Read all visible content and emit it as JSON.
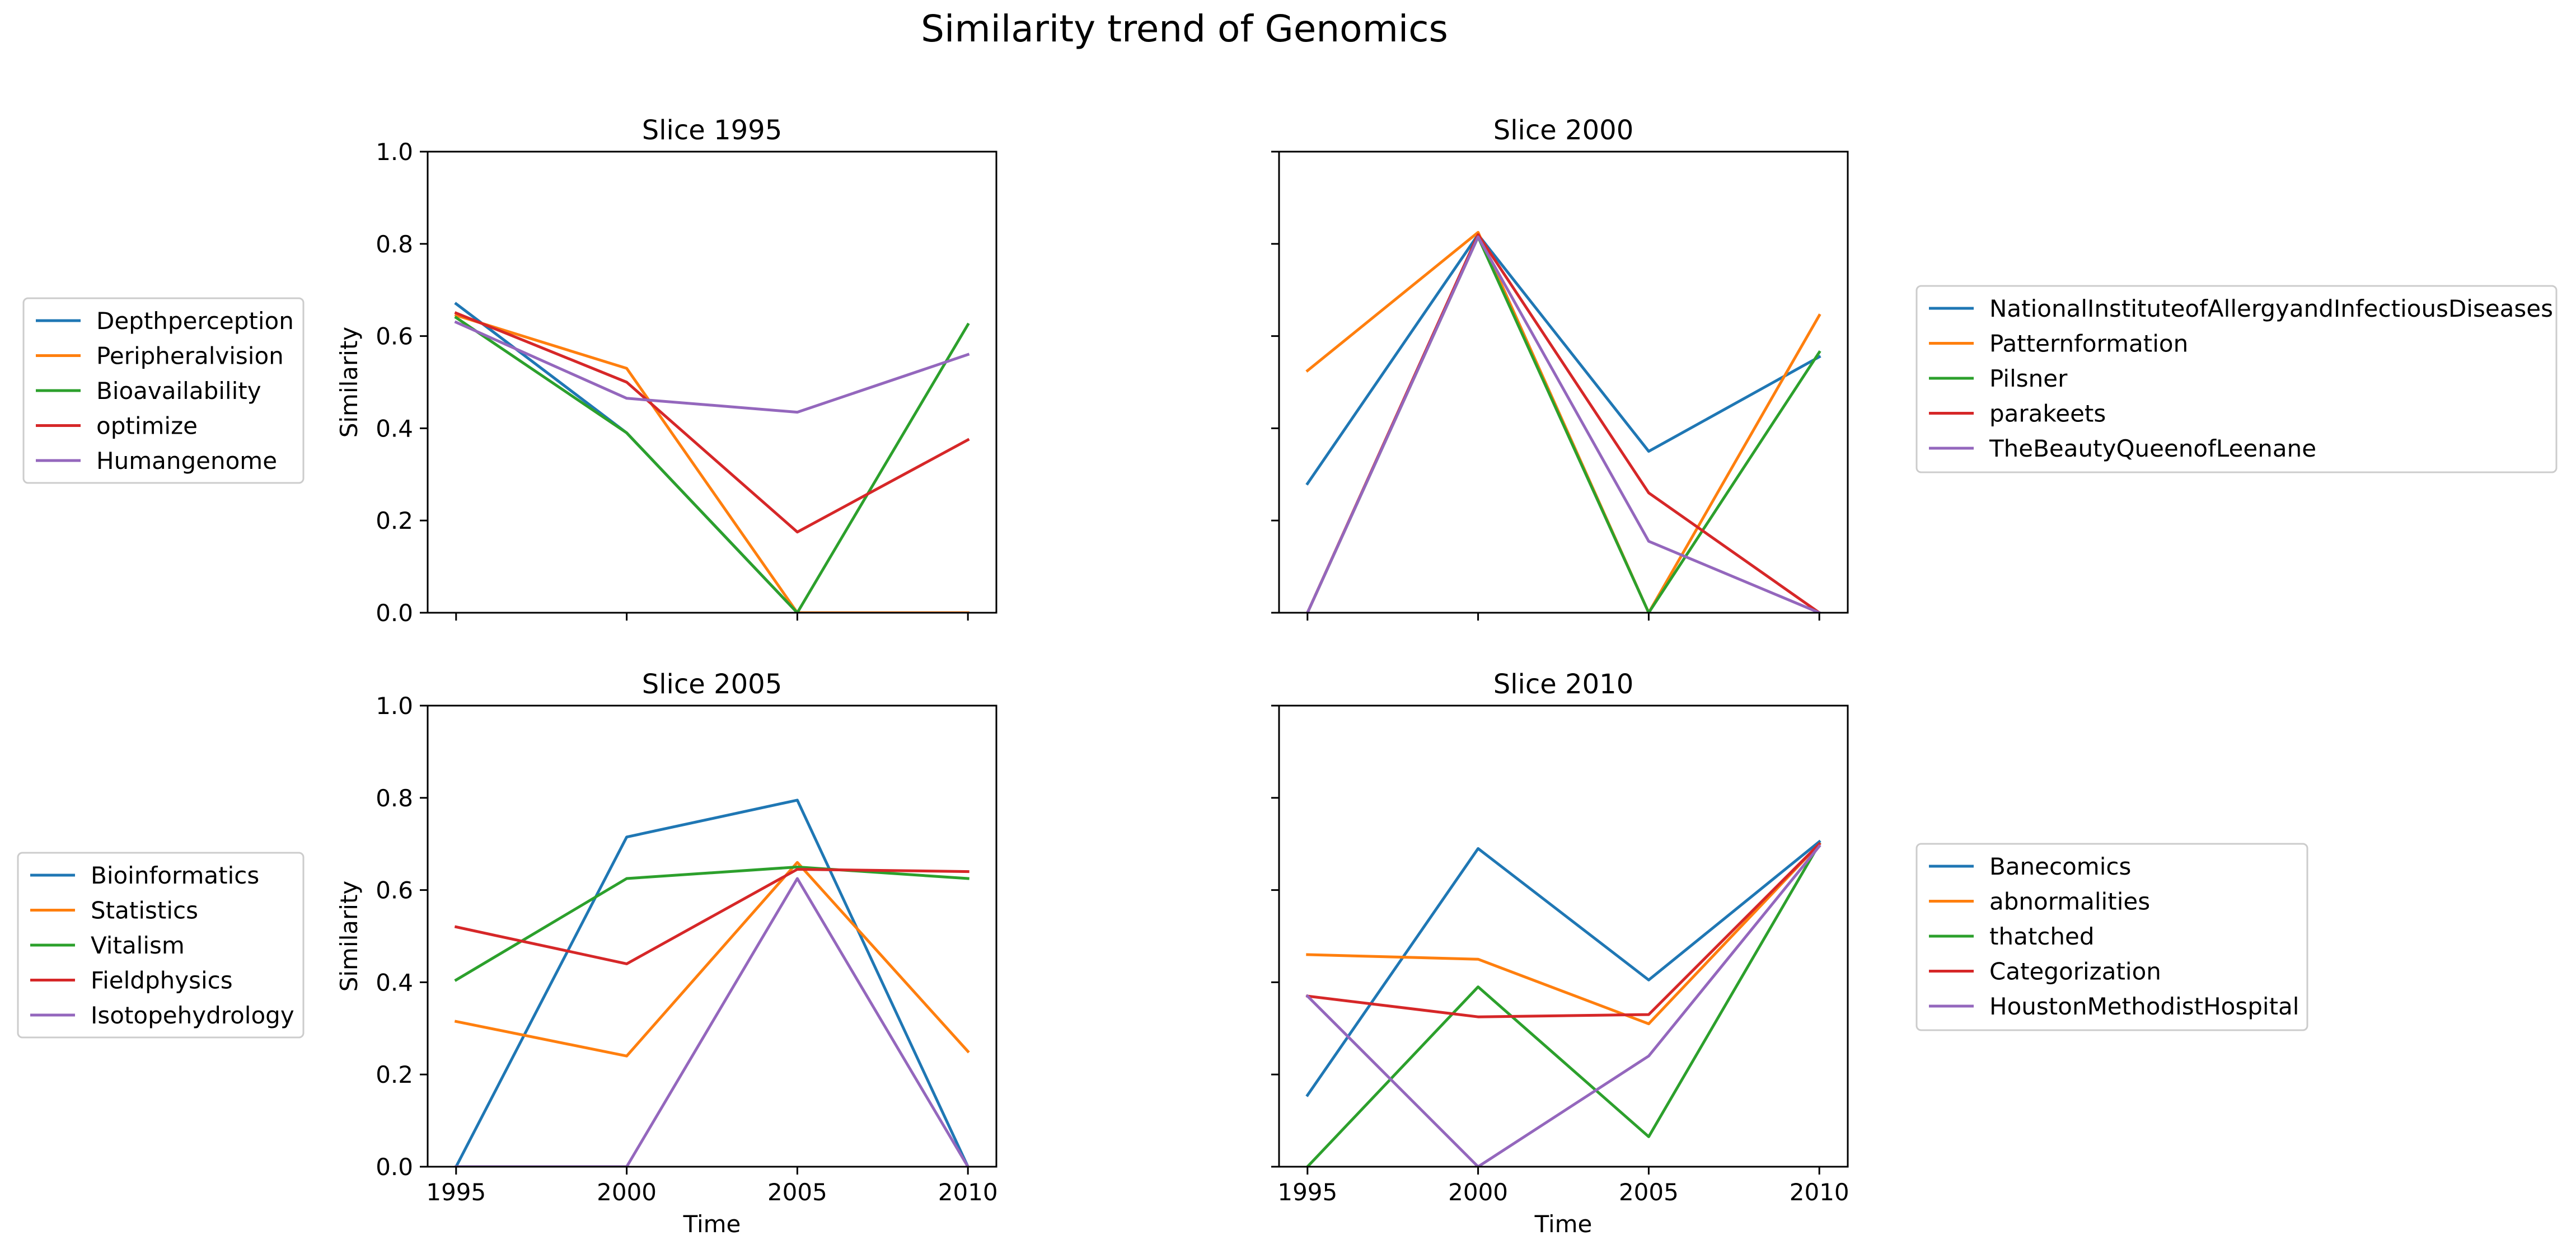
{
  "figure": {
    "title": "Similarity trend of Genomics"
  },
  "colors": {
    "c0": "#1f77b4",
    "c1": "#ff7f0e",
    "c2": "#2ca02c",
    "c3": "#d62728",
    "c4": "#9467bd"
  },
  "chart_data": [
    {
      "type": "line",
      "title": "Slice 1995",
      "xlabel": "",
      "ylabel": "Similarity",
      "x": [
        1995,
        2000,
        2005,
        2010
      ],
      "xticks": [
        "1995",
        "2000",
        "2005",
        "2010"
      ],
      "show_xticklabels": false,
      "show_yticklabels": true,
      "ylim": [
        0,
        1
      ],
      "yticks": [
        "0.0",
        "0.2",
        "0.4",
        "0.6",
        "0.8",
        "1.0"
      ],
      "grid": false,
      "legend_position": "left",
      "series": [
        {
          "name": "Depthperception",
          "values": [
            0.67,
            0.39,
            0.0,
            0.0
          ]
        },
        {
          "name": "Peripheralvision",
          "values": [
            0.645,
            0.53,
            0.0,
            0.0
          ]
        },
        {
          "name": "Bioavailability",
          "values": [
            0.64,
            0.39,
            0.0,
            0.625
          ]
        },
        {
          "name": "optimize",
          "values": [
            0.65,
            0.5,
            0.175,
            0.375
          ]
        },
        {
          "name": "Humangenome",
          "values": [
            0.63,
            0.465,
            0.435,
            0.56
          ]
        }
      ]
    },
    {
      "type": "line",
      "title": "Slice 2000",
      "xlabel": "",
      "ylabel": "",
      "x": [
        1995,
        2000,
        2005,
        2010
      ],
      "xticks": [
        "1995",
        "2000",
        "2005",
        "2010"
      ],
      "show_xticklabels": false,
      "show_yticklabels": false,
      "ylim": [
        0,
        1
      ],
      "yticks": [
        "0.0",
        "0.2",
        "0.4",
        "0.6",
        "0.8",
        "1.0"
      ],
      "grid": false,
      "legend_position": "right",
      "series": [
        {
          "name": "NationalInstituteofAllergyandInfectiousDiseases",
          "values": [
            0.28,
            0.82,
            0.35,
            0.555
          ]
        },
        {
          "name": "Patternformation",
          "values": [
            0.525,
            0.825,
            0.0,
            0.645
          ]
        },
        {
          "name": "Pilsner",
          "values": [
            0.0,
            0.815,
            0.0,
            0.565
          ]
        },
        {
          "name": "parakeets",
          "values": [
            0.0,
            0.82,
            0.26,
            0.0
          ]
        },
        {
          "name": "TheBeautyQueenofLeenane",
          "values": [
            0.0,
            0.815,
            0.155,
            0.0
          ]
        }
      ]
    },
    {
      "type": "line",
      "title": "Slice 2005",
      "xlabel": "Time",
      "ylabel": "Similarity",
      "x": [
        1995,
        2000,
        2005,
        2010
      ],
      "xticks": [
        "1995",
        "2000",
        "2005",
        "2010"
      ],
      "show_xticklabels": true,
      "show_yticklabels": true,
      "ylim": [
        0,
        1
      ],
      "yticks": [
        "0.0",
        "0.2",
        "0.4",
        "0.6",
        "0.8",
        "1.0"
      ],
      "grid": false,
      "legend_position": "left",
      "series": [
        {
          "name": "Bioinformatics",
          "values": [
            0.0,
            0.715,
            0.795,
            0.0
          ]
        },
        {
          "name": "Statistics",
          "values": [
            0.315,
            0.24,
            0.66,
            0.25
          ]
        },
        {
          "name": "Vitalism",
          "values": [
            0.405,
            0.625,
            0.65,
            0.625
          ]
        },
        {
          "name": "Fieldphysics",
          "values": [
            0.52,
            0.44,
            0.645,
            0.64
          ]
        },
        {
          "name": "Isotopehydrology",
          "values": [
            0.0,
            0.0,
            0.625,
            0.0
          ]
        }
      ]
    },
    {
      "type": "line",
      "title": "Slice 2010",
      "xlabel": "Time",
      "ylabel": "",
      "x": [
        1995,
        2000,
        2005,
        2010
      ],
      "xticks": [
        "1995",
        "2000",
        "2005",
        "2010"
      ],
      "show_xticklabels": true,
      "show_yticklabels": false,
      "ylim": [
        0,
        1
      ],
      "yticks": [
        "0.0",
        "0.2",
        "0.4",
        "0.6",
        "0.8",
        "1.0"
      ],
      "grid": false,
      "legend_position": "right",
      "series": [
        {
          "name": "Banecomics",
          "values": [
            0.155,
            0.69,
            0.405,
            0.705
          ]
        },
        {
          "name": "abnormalities",
          "values": [
            0.46,
            0.45,
            0.31,
            0.7
          ]
        },
        {
          "name": "thatched",
          "values": [
            0.0,
            0.39,
            0.065,
            0.7
          ]
        },
        {
          "name": "Categorization",
          "values": [
            0.37,
            0.325,
            0.33,
            0.7
          ]
        },
        {
          "name": "HoustonMethodistHospital",
          "values": [
            0.37,
            0.0,
            0.24,
            0.695
          ]
        }
      ]
    }
  ]
}
